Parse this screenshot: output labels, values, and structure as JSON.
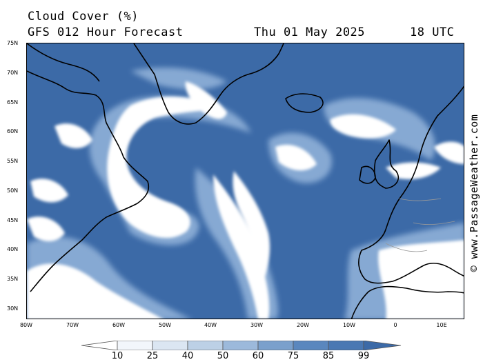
{
  "title": {
    "product": "Cloud Cover (%)",
    "model": "GFS 012 Hour Forecast",
    "date": "Thu 01 May 2025",
    "time": "18 UTC"
  },
  "credit": "© www.PassageWeather.com",
  "map": {
    "region": "North Atlantic",
    "ocean_color": "#3c6aa7",
    "lat_labels": [
      "75N",
      "70N",
      "65N",
      "60N",
      "55N",
      "50N",
      "45N",
      "40N",
      "35N",
      "30N"
    ],
    "lon_labels": [
      "80W",
      "70W",
      "60W",
      "50W",
      "40W",
      "30W",
      "20W",
      "10W",
      "0",
      "10E"
    ]
  },
  "colorbar": {
    "labels": [
      "10",
      "25",
      "40",
      "50",
      "60",
      "75",
      "85",
      "99"
    ],
    "colors": [
      "#ffffff",
      "#f2f6fb",
      "#dbe6f2",
      "#bcd0e6",
      "#9cb9db",
      "#7aa0cc",
      "#5a87be",
      "#3c6aa7"
    ]
  }
}
